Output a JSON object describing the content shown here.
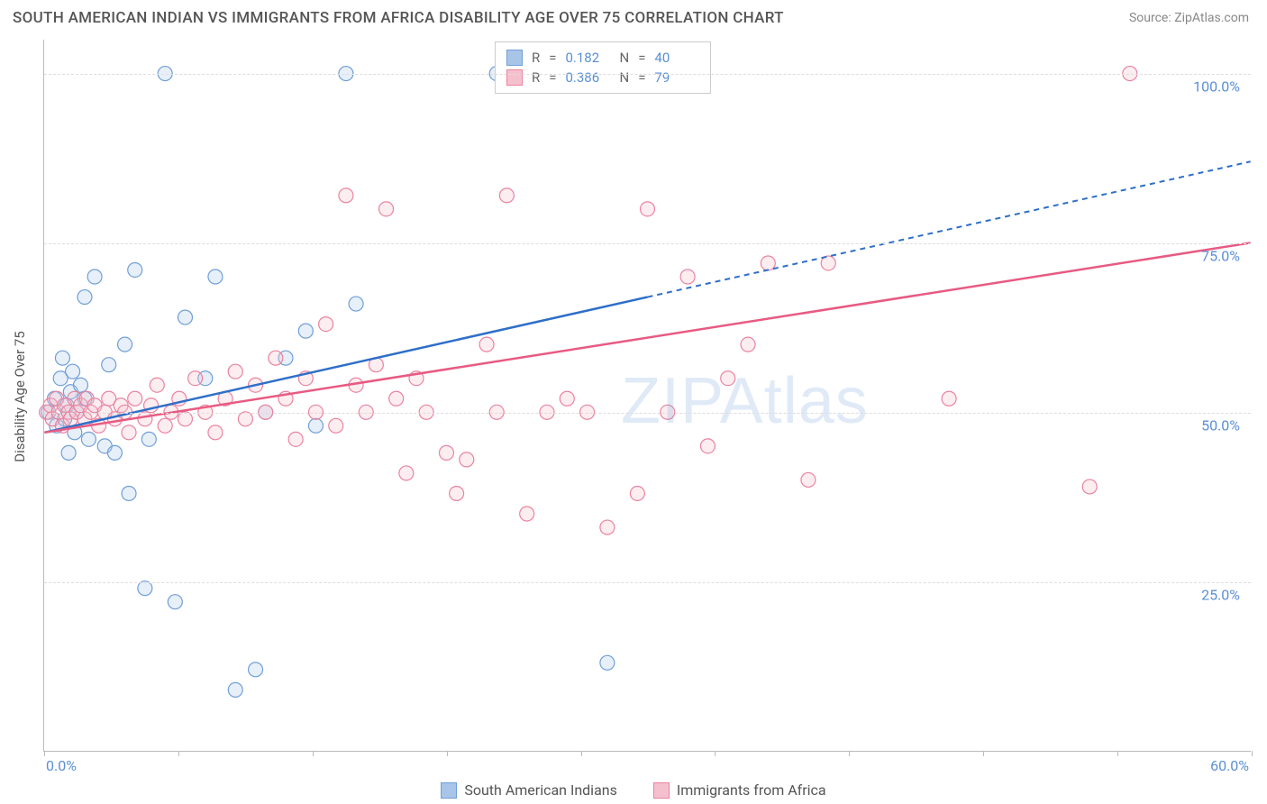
{
  "title": "SOUTH AMERICAN INDIAN VS IMMIGRANTS FROM AFRICA DISABILITY AGE OVER 75 CORRELATION CHART",
  "source": "Source: ZipAtlas.com",
  "ylabel": "Disability Age Over 75",
  "watermark": "ZIPAtlas",
  "chart": {
    "type": "scatter",
    "background_color": "#ffffff",
    "grid_color": "#dddddd",
    "axis_color": "#bbbbbb",
    "tick_label_color": "#5b8fd6",
    "xlim": [
      0,
      60
    ],
    "ylim": [
      0,
      105
    ],
    "x_ticks": [
      0,
      6.67,
      13.33,
      20,
      26.67,
      33.33,
      40,
      46.67,
      53.33,
      60
    ],
    "x_tick_labels": {
      "0": "0.0%",
      "60": "60.0%"
    },
    "y_gridlines": [
      25,
      50,
      75,
      100
    ],
    "y_tick_labels": {
      "25": "25.0%",
      "50": "50.0%",
      "75": "75.0%",
      "100": "100.0%"
    },
    "marker_radius": 8,
    "marker_stroke_width": 1.2,
    "marker_fill_opacity": 0.28,
    "trend_line_width": 2.5
  },
  "series": [
    {
      "name": "South American Indians",
      "color_fill": "#a8c5e8",
      "color_stroke": "#6f9fd8",
      "color_line": "#2e6fc9",
      "R": "0.182",
      "N": "40",
      "trend": {
        "x1": 0,
        "y1": 47,
        "x2_solid": 30,
        "y2_solid": 67,
        "x2_dash": 60,
        "y2_dash": 87
      },
      "points": [
        [
          0.2,
          50
        ],
        [
          0.5,
          52
        ],
        [
          0.6,
          48
        ],
        [
          0.8,
          55
        ],
        [
          1.0,
          49
        ],
        [
          1.1,
          51
        ],
        [
          1.3,
          53
        ],
        [
          1.5,
          47
        ],
        [
          0.9,
          58
        ],
        [
          1.2,
          44
        ],
        [
          1.4,
          56
        ],
        [
          1.6,
          50
        ],
        [
          1.8,
          54
        ],
        [
          2.0,
          52
        ],
        [
          2.2,
          46
        ],
        [
          2.5,
          70
        ],
        [
          2.0,
          67
        ],
        [
          3.0,
          45
        ],
        [
          3.2,
          57
        ],
        [
          3.5,
          44
        ],
        [
          4.0,
          60
        ],
        [
          4.2,
          38
        ],
        [
          4.5,
          71
        ],
        [
          5.0,
          24
        ],
        [
          5.2,
          46
        ],
        [
          6.0,
          100
        ],
        [
          6.5,
          22
        ],
        [
          7.0,
          64
        ],
        [
          8.0,
          55
        ],
        [
          8.5,
          70
        ],
        [
          9.5,
          9
        ],
        [
          10.5,
          12
        ],
        [
          11.0,
          50
        ],
        [
          12.0,
          58
        ],
        [
          13.0,
          62
        ],
        [
          15.0,
          100
        ],
        [
          15.5,
          66
        ],
        [
          22.5,
          100
        ],
        [
          28.0,
          13
        ],
        [
          13.5,
          48
        ]
      ]
    },
    {
      "name": "Immigrants from Africa",
      "color_fill": "#f5c0cd",
      "color_stroke": "#ea839f",
      "color_line": "#e85a82",
      "R": "0.386",
      "N": "79",
      "trend": {
        "x1": 0,
        "y1": 47,
        "x2_solid": 60,
        "y2_solid": 75,
        "x2_dash": 60,
        "y2_dash": 75
      },
      "points": [
        [
          0.1,
          50
        ],
        [
          0.3,
          51
        ],
        [
          0.4,
          49
        ],
        [
          0.6,
          52
        ],
        [
          0.7,
          50
        ],
        [
          0.9,
          48
        ],
        [
          1.0,
          51
        ],
        [
          1.2,
          50
        ],
        [
          1.3,
          49
        ],
        [
          1.5,
          52
        ],
        [
          1.6,
          50
        ],
        [
          1.8,
          51
        ],
        [
          2.0,
          49
        ],
        [
          2.1,
          52
        ],
        [
          2.3,
          50
        ],
        [
          2.5,
          51
        ],
        [
          2.7,
          48
        ],
        [
          3.0,
          50
        ],
        [
          3.2,
          52
        ],
        [
          3.5,
          49
        ],
        [
          3.8,
          51
        ],
        [
          4.0,
          50
        ],
        [
          4.2,
          47
        ],
        [
          4.5,
          52
        ],
        [
          5.0,
          49
        ],
        [
          5.3,
          51
        ],
        [
          5.6,
          54
        ],
        [
          6.0,
          48
        ],
        [
          6.3,
          50
        ],
        [
          6.7,
          52
        ],
        [
          7.0,
          49
        ],
        [
          7.5,
          55
        ],
        [
          8.0,
          50
        ],
        [
          8.5,
          47
        ],
        [
          9.0,
          52
        ],
        [
          9.5,
          56
        ],
        [
          10.0,
          49
        ],
        [
          10.5,
          54
        ],
        [
          11.0,
          50
        ],
        [
          11.5,
          58
        ],
        [
          12.0,
          52
        ],
        [
          12.5,
          46
        ],
        [
          13.0,
          55
        ],
        [
          13.5,
          50
        ],
        [
          14.0,
          63
        ],
        [
          14.5,
          48
        ],
        [
          15.0,
          82
        ],
        [
          15.5,
          54
        ],
        [
          16.0,
          50
        ],
        [
          16.5,
          57
        ],
        [
          17.0,
          80
        ],
        [
          17.5,
          52
        ],
        [
          18.0,
          41
        ],
        [
          18.5,
          55
        ],
        [
          19.0,
          50
        ],
        [
          20.0,
          44
        ],
        [
          20.5,
          38
        ],
        [
          21.0,
          43
        ],
        [
          22.0,
          60
        ],
        [
          22.5,
          50
        ],
        [
          23.0,
          82
        ],
        [
          24.0,
          35
        ],
        [
          25.0,
          50
        ],
        [
          26.0,
          52
        ],
        [
          27.0,
          50
        ],
        [
          28.0,
          33
        ],
        [
          29.5,
          38
        ],
        [
          30.0,
          80
        ],
        [
          31.0,
          50
        ],
        [
          32.0,
          70
        ],
        [
          33.0,
          45
        ],
        [
          34.0,
          55
        ],
        [
          35.0,
          60
        ],
        [
          36.0,
          72
        ],
        [
          38.0,
          40
        ],
        [
          39.0,
          72
        ],
        [
          52.0,
          39
        ],
        [
          54.0,
          100
        ],
        [
          45.0,
          52
        ]
      ]
    }
  ],
  "bottom_legend": [
    {
      "label": "South American Indians",
      "fill": "#a8c5e8",
      "stroke": "#6f9fd8"
    },
    {
      "label": "Immigrants from Africa",
      "fill": "#f5c0cd",
      "stroke": "#ea839f"
    }
  ],
  "top_legend_labels": {
    "r": "R",
    "eq": "=",
    "n": "N"
  }
}
